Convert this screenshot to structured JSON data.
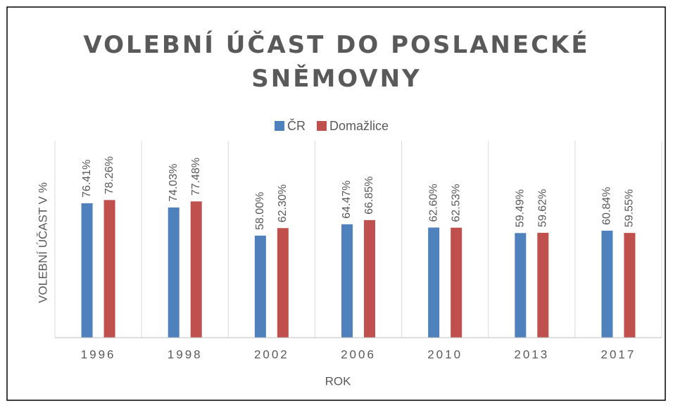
{
  "chart_data": {
    "type": "bar",
    "title": "VOLEBNÍ ÚČAST DO POSLANECKÉ SNĚMOVNY",
    "x_label": "ROK",
    "y_label": "VOLEBNÍ ÚČAST V %",
    "categories": [
      "1996",
      "1998",
      "2002",
      "2006",
      "2010",
      "2013",
      "2017"
    ],
    "series": [
      {
        "name": "ČR",
        "color": "#4f81bd",
        "values": [
          76.41,
          74.03,
          58.0,
          64.47,
          62.6,
          59.49,
          60.84
        ],
        "value_labels": [
          "76.41%",
          "74.03%",
          "58.00%",
          "64.47%",
          "62.60%",
          "59.49%",
          "60.84%"
        ]
      },
      {
        "name": "Domažlice",
        "color": "#c0504d",
        "values": [
          78.26,
          77.48,
          62.3,
          66.85,
          62.53,
          59.62,
          59.55
        ],
        "value_labels": [
          "78.26%",
          "77.48%",
          "62.30%",
          "66.85%",
          "62.53%",
          "59.62%",
          "59.55%"
        ]
      }
    ],
    "ylim": [
      0,
      100
    ]
  }
}
